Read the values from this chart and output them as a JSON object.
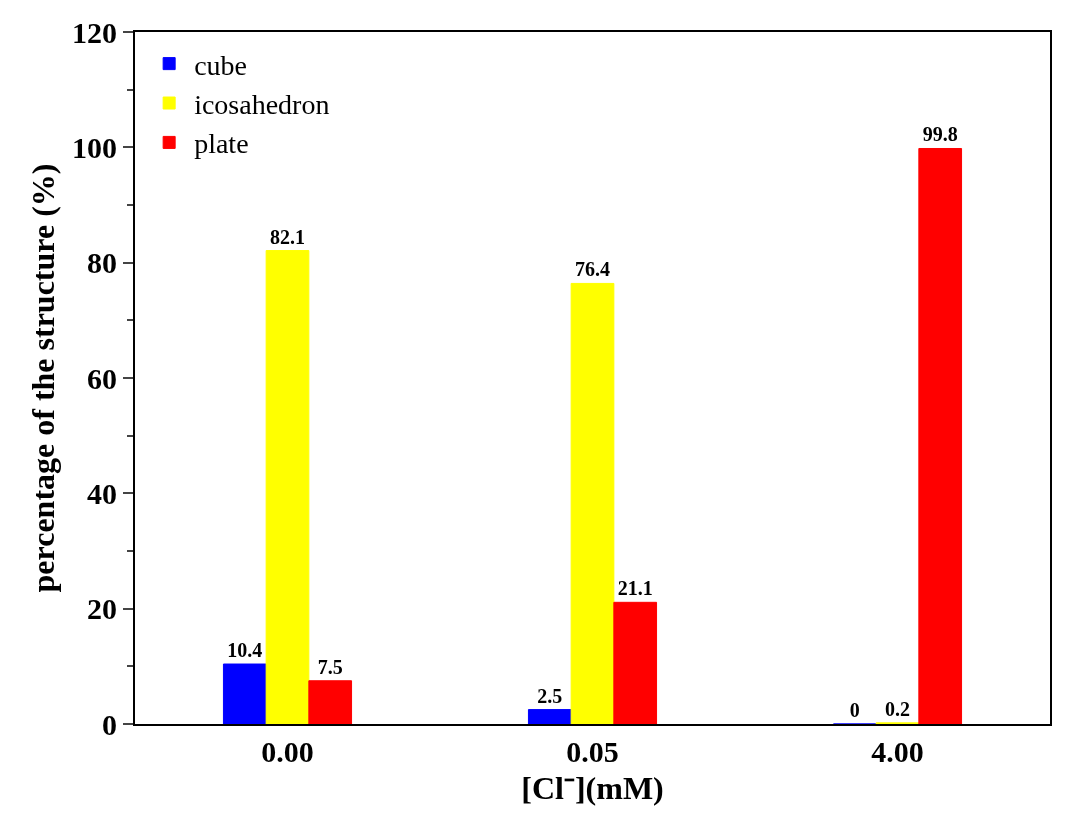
{
  "chart_data": {
    "type": "bar",
    "xlabel": "[Cl⁻](mM)",
    "ylabel": "percentage of the structure (%)",
    "categories": [
      "0.00",
      "0.05",
      "4.00"
    ],
    "series": [
      {
        "name": "cube",
        "color": "#0000ff",
        "values": [
          10.4,
          2.5,
          0
        ]
      },
      {
        "name": "icosahedron",
        "color": "#ffff00",
        "values": [
          82.1,
          76.4,
          0.2
        ]
      },
      {
        "name": "plate",
        "color": "#ff0000",
        "values": [
          7.5,
          21.1,
          99.8
        ]
      }
    ],
    "ylim": [
      0,
      120
    ],
    "yticks": [
      0,
      20,
      40,
      60,
      80,
      100,
      120
    ],
    "data_labels": true,
    "legend": "top left"
  }
}
